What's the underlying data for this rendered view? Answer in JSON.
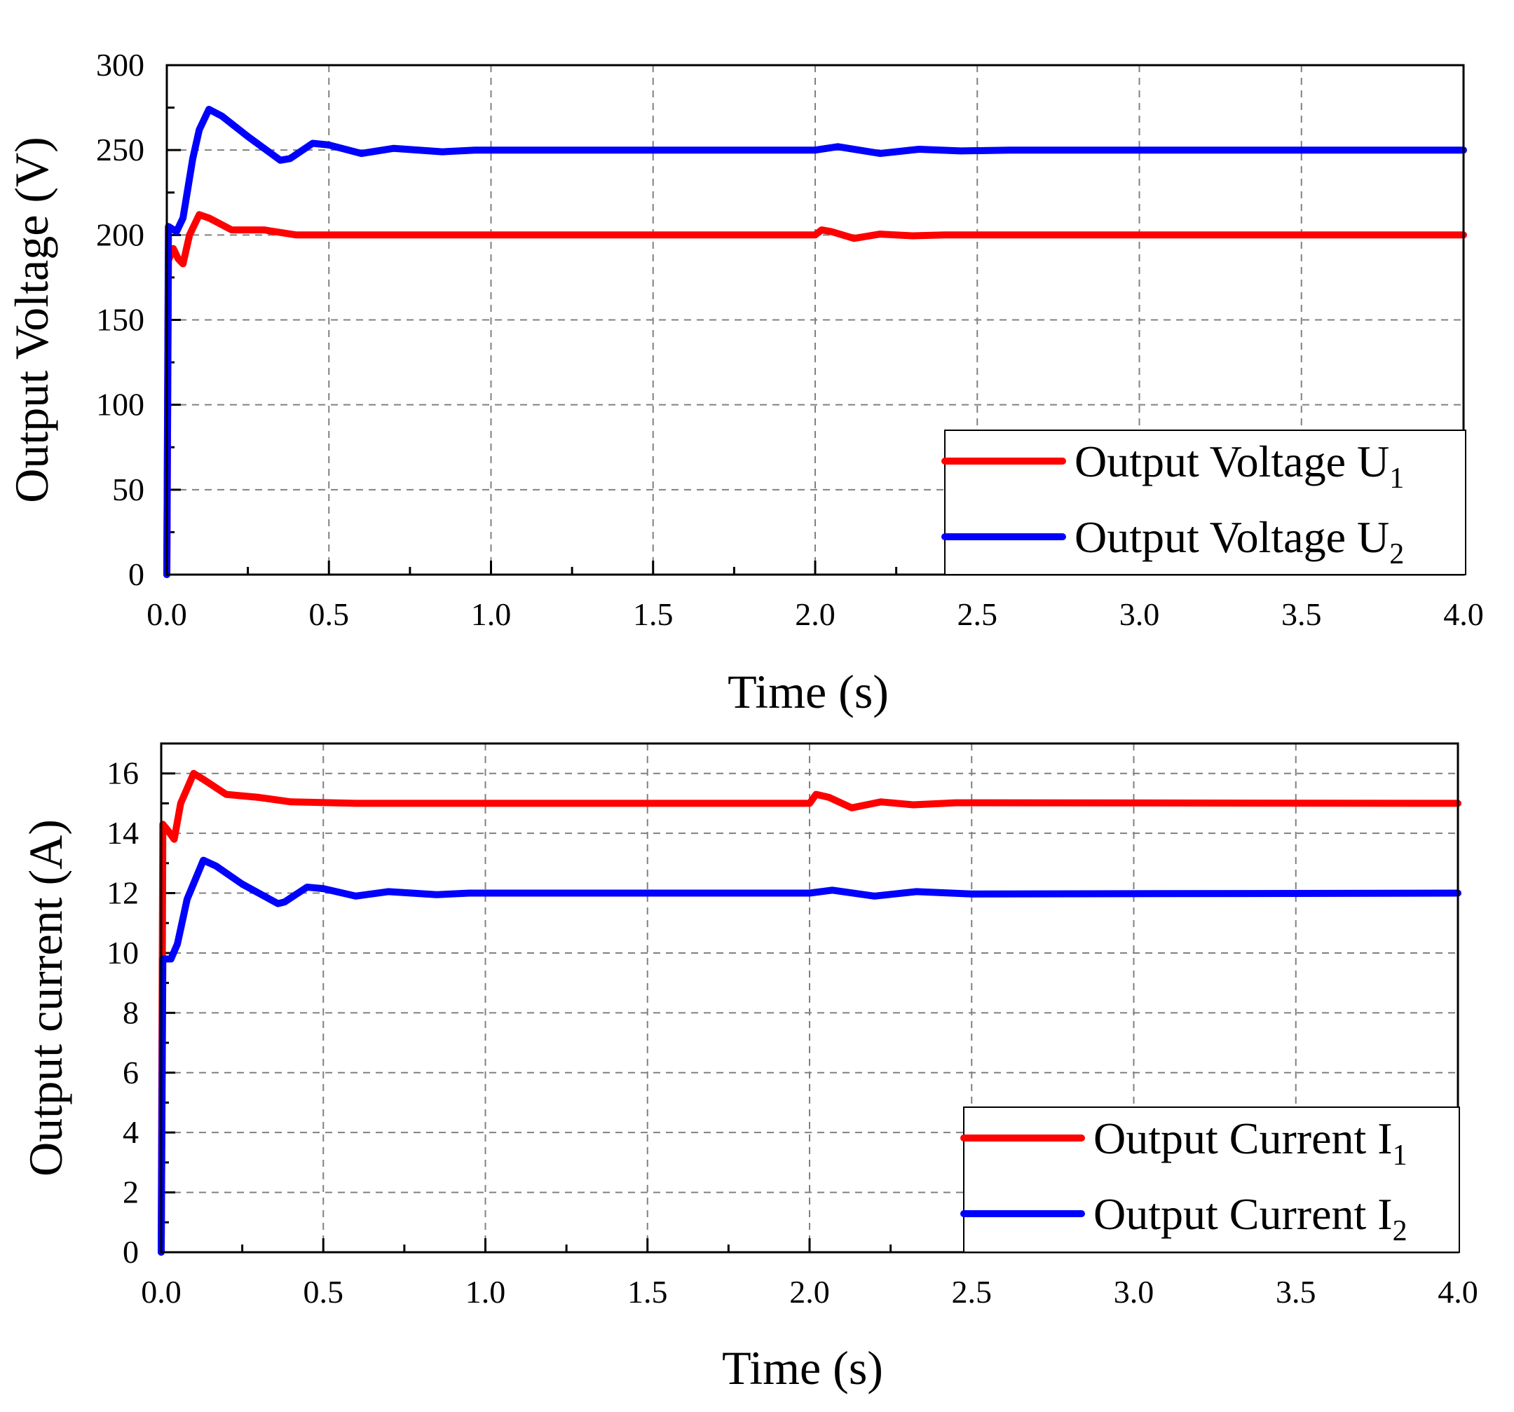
{
  "chart_data": [
    {
      "type": "line",
      "title": "",
      "xlabel": "Time (s)",
      "ylabel": "Output Voltage (V)",
      "xlim": [
        0,
        4
      ],
      "ylim": [
        0,
        300
      ],
      "xticks": [
        "0.0",
        "0.5",
        "1.0",
        "1.5",
        "2.0",
        "2.5",
        "3.0",
        "3.5",
        "4.0"
      ],
      "yticks": [
        "0",
        "50",
        "100",
        "150",
        "200",
        "250",
        "300"
      ],
      "grid": true,
      "legend_position": "bottom-right",
      "series": [
        {
          "name": "Output Voltage U",
          "subscript": "1",
          "color": "#ff0000",
          "x": [
            0,
            0.005,
            0.02,
            0.035,
            0.05,
            0.07,
            0.1,
            0.13,
            0.2,
            0.3,
            0.4,
            0.6,
            2.0,
            2.02,
            2.05,
            2.12,
            2.2,
            2.3,
            2.4,
            4.0
          ],
          "y": [
            0,
            185,
            192,
            186,
            183,
            200,
            212,
            210,
            203,
            203,
            200,
            200,
            200,
            203,
            202,
            198,
            200.5,
            199.5,
            200,
            200
          ]
        },
        {
          "name": "Output Voltage U",
          "subscript": "2",
          "color": "#0000ff",
          "x": [
            0,
            0.005,
            0.03,
            0.05,
            0.08,
            0.1,
            0.13,
            0.17,
            0.25,
            0.35,
            0.38,
            0.45,
            0.5,
            0.6,
            0.7,
            0.85,
            0.95,
            2.0,
            2.07,
            2.2,
            2.32,
            2.45,
            2.6,
            4.0
          ],
          "y": [
            0,
            205,
            202,
            210,
            245,
            262,
            274,
            270,
            258,
            244,
            245,
            254,
            253,
            248,
            251,
            249,
            250,
            250,
            252,
            248,
            250.5,
            249.5,
            250,
            250
          ]
        }
      ]
    },
    {
      "type": "line",
      "title": "",
      "xlabel": "Time (s)",
      "ylabel": "Output current (A)",
      "xlim": [
        0,
        4
      ],
      "ylim": [
        0,
        17
      ],
      "xticks": [
        "0.0",
        "0.5",
        "1.0",
        "1.5",
        "2.0",
        "2.5",
        "3.0",
        "3.5",
        "4.0"
      ],
      "yticks": [
        "0",
        "2",
        "4",
        "6",
        "8",
        "10",
        "12",
        "14",
        "16"
      ],
      "grid": true,
      "legend_position": "bottom-right",
      "series": [
        {
          "name": "Output Current I",
          "subscript": "1",
          "color": "#ff0000",
          "x": [
            0,
            0.005,
            0.02,
            0.04,
            0.06,
            0.1,
            0.13,
            0.2,
            0.3,
            0.4,
            0.6,
            2.0,
            2.02,
            2.06,
            2.13,
            2.22,
            2.32,
            2.45,
            4.0
          ],
          "y": [
            0,
            14.3,
            14.1,
            13.8,
            15.0,
            16.0,
            15.8,
            15.3,
            15.2,
            15.05,
            15.0,
            15.0,
            15.3,
            15.2,
            14.85,
            15.05,
            14.95,
            15.02,
            15.0
          ]
        },
        {
          "name": "Output Current I",
          "subscript": "2",
          "color": "#0000ff",
          "x": [
            0,
            0.005,
            0.03,
            0.05,
            0.08,
            0.13,
            0.17,
            0.25,
            0.36,
            0.38,
            0.45,
            0.5,
            0.6,
            0.7,
            0.85,
            0.95,
            2.0,
            2.07,
            2.2,
            2.33,
            2.5,
            4.0
          ],
          "y": [
            0,
            9.8,
            9.8,
            10.3,
            11.8,
            13.1,
            12.9,
            12.3,
            11.65,
            11.7,
            12.2,
            12.15,
            11.9,
            12.05,
            11.95,
            12.0,
            12.0,
            12.1,
            11.9,
            12.05,
            11.97,
            12.0
          ]
        }
      ]
    }
  ]
}
